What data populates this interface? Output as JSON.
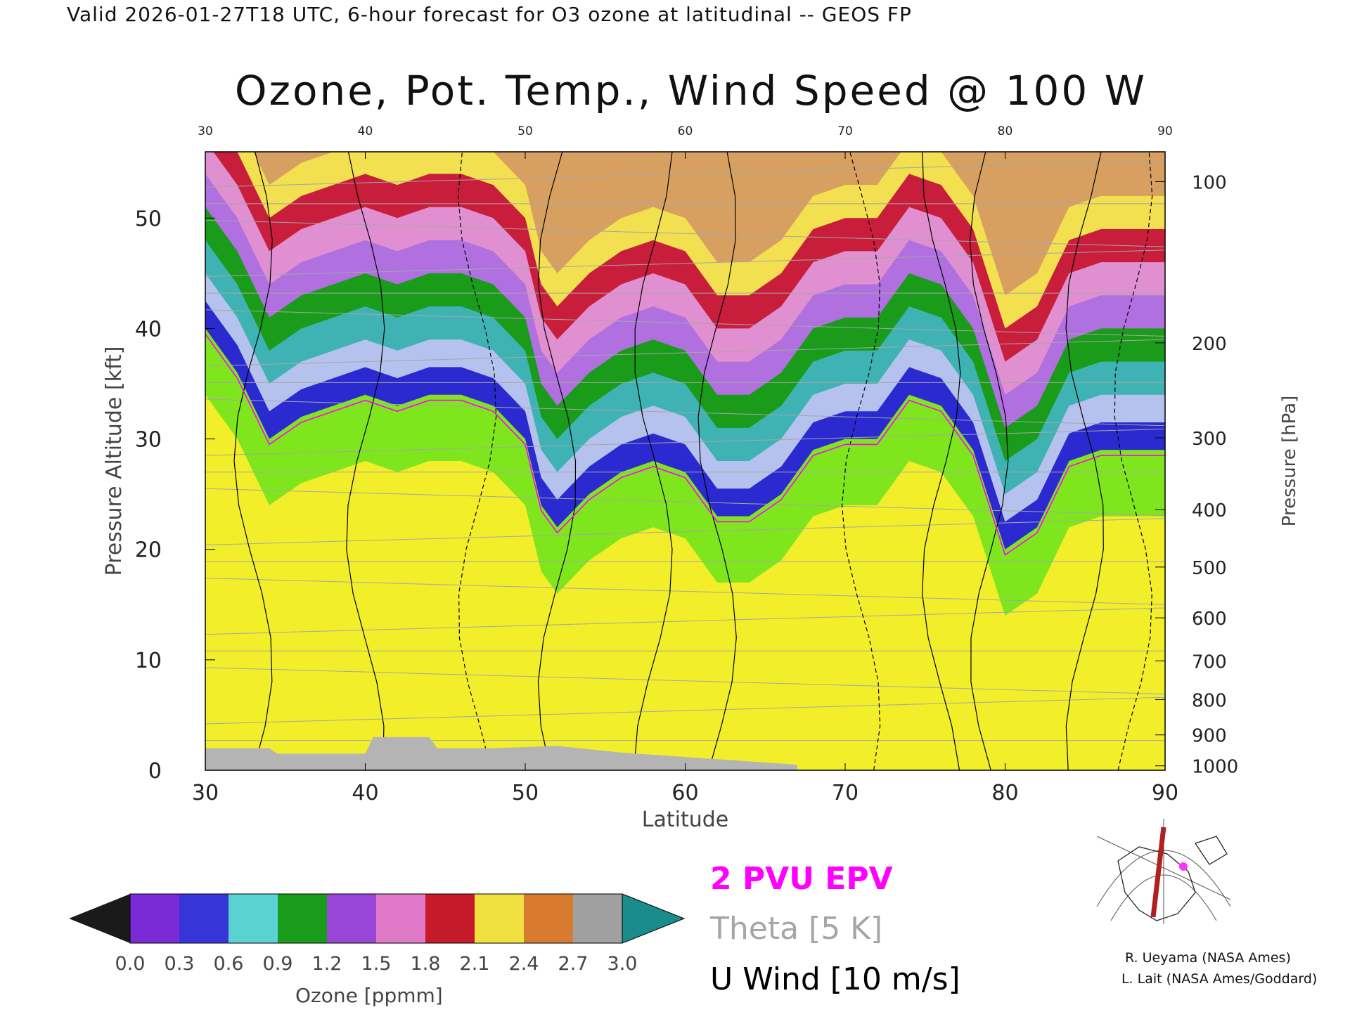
{
  "header_line": "Valid 2026-01-27T18 UTC, 6-hour forecast for O3 ozone at latitudinal -- GEOS FP",
  "chart_data": {
    "type": "heatmap",
    "title": "Ozone, Pot. Temp., Wind Speed @ 100 W",
    "xlabel": "Latitude",
    "ylabel": "Pressure Altitude [kft]",
    "y2label": "Pressure [hPa]",
    "xlim": [
      30,
      90
    ],
    "ylim": [
      0,
      56
    ],
    "x_ticks": [
      "30",
      "40",
      "50",
      "60",
      "70",
      "80",
      "90"
    ],
    "y_ticks": [
      "0",
      "10",
      "20",
      "30",
      "40",
      "50"
    ],
    "y2_ticks": [
      {
        "label": "100",
        "kft": 53.3
      },
      {
        "label": "200",
        "kft": 38.7
      },
      {
        "label": "300",
        "kft": 30.1
      },
      {
        "label": "400",
        "kft": 23.6
      },
      {
        "label": "500",
        "kft": 18.4
      },
      {
        "label": "600",
        "kft": 13.8
      },
      {
        "label": "700",
        "kft": 9.9
      },
      {
        "label": "800",
        "kft": 6.4
      },
      {
        "label": "900",
        "kft": 3.2
      },
      {
        "label": "1000",
        "kft": 0.4
      }
    ],
    "tropopause_kft": [
      [
        30,
        40
      ],
      [
        32,
        36
      ],
      [
        34,
        30
      ],
      [
        36,
        32
      ],
      [
        38,
        33
      ],
      [
        40,
        34
      ],
      [
        42,
        33
      ],
      [
        44,
        34
      ],
      [
        46,
        34
      ],
      [
        48,
        33
      ],
      [
        50,
        30
      ],
      [
        51,
        24
      ],
      [
        52,
        22
      ],
      [
        54,
        25
      ],
      [
        56,
        27
      ],
      [
        58,
        28
      ],
      [
        60,
        27
      ],
      [
        62,
        23
      ],
      [
        64,
        23
      ],
      [
        66,
        25
      ],
      [
        68,
        29
      ],
      [
        70,
        30
      ],
      [
        72,
        30
      ],
      [
        74,
        34
      ],
      [
        76,
        33
      ],
      [
        78,
        29
      ],
      [
        80,
        20
      ],
      [
        82,
        22
      ],
      [
        84,
        28
      ],
      [
        86,
        29
      ],
      [
        88,
        29
      ],
      [
        90,
        29
      ]
    ],
    "ozone_bands_kft": {
      "lower_boundary": [
        [
          30,
          40
        ],
        [
          32,
          36
        ],
        [
          34,
          30
        ],
        [
          36,
          32
        ],
        [
          38,
          33
        ],
        [
          40,
          34
        ],
        [
          42,
          33
        ],
        [
          44,
          34
        ],
        [
          46,
          34
        ],
        [
          48,
          33
        ],
        [
          50,
          30
        ],
        [
          51,
          24
        ],
        [
          52,
          22
        ],
        [
          54,
          25
        ],
        [
          56,
          27
        ],
        [
          58,
          28
        ],
        [
          60,
          27
        ],
        [
          62,
          23
        ],
        [
          64,
          23
        ],
        [
          66,
          25
        ],
        [
          68,
          29
        ],
        [
          70,
          30
        ],
        [
          72,
          30
        ],
        [
          74,
          34
        ],
        [
          76,
          33
        ],
        [
          78,
          29
        ],
        [
          80,
          20
        ],
        [
          82,
          22
        ],
        [
          84,
          28
        ],
        [
          86,
          29
        ],
        [
          88,
          29
        ],
        [
          90,
          29
        ]
      ],
      "band_offsets_kft": [
        0,
        2.5,
        5,
        8,
        11,
        14,
        17,
        20,
        23
      ]
    },
    "ozone_colorbar": {
      "label": "Ozone [ppmm]",
      "ticks": [
        "0.0",
        "0.3",
        "0.6",
        "0.9",
        "1.2",
        "1.5",
        "1.8",
        "2.1",
        "2.4",
        "2.7",
        "3.0"
      ],
      "colors": [
        "#1a1a1a",
        "#7a2bd6",
        "#3636d8",
        "#5ad2d2",
        "#1a9b1a",
        "#9a46d8",
        "#e07ac8",
        "#c41a2a",
        "#f0e040",
        "#d87a30",
        "#a0a0a0",
        "#1a8c8c"
      ]
    },
    "legend": {
      "epv": "2 PVU EPV",
      "theta": "Theta [5 K]",
      "uwind": "U Wind [10 m/s]"
    },
    "colors": {
      "epv": "#ff00ff",
      "theta": "#a6a6a6",
      "uwind": "#000000",
      "terrain": "#b4b4b4"
    }
  },
  "credits": [
    "R. Ueyama (NASA Ames)",
    "L. Lait (NASA Ames/Goddard)"
  ]
}
